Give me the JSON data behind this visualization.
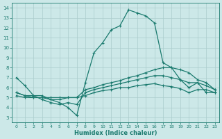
{
  "xlabel": "Humidex (Indice chaleur)",
  "bg_color": "#cce8e8",
  "line_color": "#1a7a6e",
  "grid_color": "#aacccc",
  "xlim": [
    -0.5,
    23.5
  ],
  "ylim": [
    2.5,
    14.5
  ],
  "xticks": [
    0,
    1,
    2,
    3,
    4,
    5,
    6,
    7,
    8,
    9,
    10,
    11,
    12,
    13,
    14,
    15,
    16,
    17,
    18,
    19,
    20,
    21,
    22,
    23
  ],
  "yticks": [
    3,
    4,
    5,
    6,
    7,
    8,
    9,
    10,
    11,
    12,
    13,
    14
  ],
  "line1_y": [
    7.0,
    6.2,
    5.2,
    5.2,
    4.8,
    4.5,
    4.0,
    3.2,
    6.5,
    9.5,
    10.5,
    11.8,
    12.2,
    13.8,
    13.5,
    13.2,
    12.5,
    8.5,
    8.0,
    6.8,
    6.0,
    6.5,
    5.5,
    5.5
  ],
  "line2_y": [
    5.5,
    5.2,
    5.0,
    5.0,
    4.8,
    4.8,
    5.0,
    5.0,
    5.8,
    6.0,
    6.3,
    6.5,
    6.7,
    7.0,
    7.2,
    7.5,
    7.8,
    8.0,
    8.0,
    7.8,
    7.5,
    6.8,
    6.5,
    5.8
  ],
  "line3_y": [
    5.2,
    5.0,
    5.0,
    5.0,
    5.0,
    5.0,
    5.0,
    5.0,
    5.2,
    5.5,
    5.7,
    5.8,
    6.0,
    6.0,
    6.2,
    6.3,
    6.4,
    6.2,
    6.1,
    5.9,
    5.5,
    5.8,
    5.8,
    5.5
  ],
  "line4_y": [
    5.5,
    5.2,
    5.2,
    4.8,
    4.5,
    4.3,
    4.5,
    4.3,
    5.5,
    5.8,
    6.0,
    6.2,
    6.4,
    6.6,
    6.8,
    7.0,
    7.2,
    7.2,
    7.0,
    6.8,
    6.5,
    6.5,
    6.2,
    5.8
  ]
}
